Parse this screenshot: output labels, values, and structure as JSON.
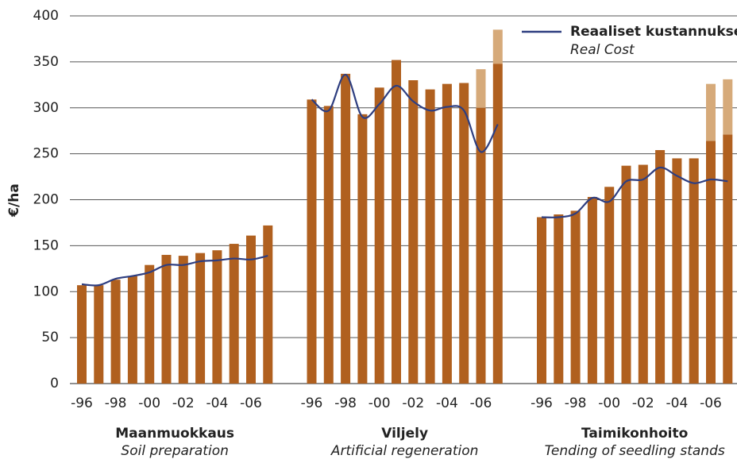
{
  "chart_data": {
    "type": "bar",
    "y_label": "€/ha",
    "ylim": [
      0,
      400
    ],
    "yticks": [
      0,
      50,
      100,
      150,
      200,
      250,
      300,
      350,
      400
    ],
    "grid": true,
    "bar_color": "#b0601f",
    "extra_color": "#d6aa7a",
    "legend": {
      "name": "Reaaliset kustannukset",
      "subtitle": "Real Cost",
      "color": "#2e3e80"
    },
    "groups": [
      {
        "title": "Maanmuokkaus",
        "subtitle": "Soil preparation",
        "categories": [
          "-96",
          null,
          "-98",
          null,
          "-00",
          null,
          "-02",
          null,
          "-04",
          null,
          "-06",
          null
        ],
        "values": [
          107,
          107,
          113,
          117,
          129,
          140,
          139,
          142,
          145,
          152,
          161,
          172
        ],
        "extra": [
          null,
          null,
          null,
          null,
          null,
          null,
          null,
          null,
          null,
          null,
          null,
          null
        ],
        "real_cost": [
          108,
          107,
          114,
          117,
          121,
          129,
          129,
          133,
          134,
          136,
          135,
          139
        ]
      },
      {
        "title": "Viljely",
        "subtitle": "Artificial regeneration",
        "categories": [
          "-96",
          null,
          "-98",
          null,
          "-00",
          null,
          "-02",
          null,
          "-04",
          null,
          "-06",
          null
        ],
        "values": [
          309,
          302,
          337,
          293,
          322,
          352,
          330,
          320,
          326,
          327,
          300,
          348
        ],
        "extra": [
          null,
          null,
          null,
          null,
          null,
          null,
          null,
          null,
          null,
          null,
          42,
          37
        ],
        "real_cost": [
          309,
          297,
          336,
          290,
          304,
          324,
          307,
          297,
          301,
          297,
          252,
          282
        ]
      },
      {
        "title": "Taimikonhoito",
        "subtitle": "Tending of seedling stands",
        "categories": [
          "-96",
          null,
          "-98",
          null,
          "-00",
          null,
          "-02",
          null,
          "-04",
          null,
          "-06",
          null
        ],
        "values": [
          181,
          184,
          188,
          203,
          214,
          237,
          238,
          254,
          245,
          245,
          264,
          271
        ],
        "extra": [
          null,
          null,
          null,
          null,
          null,
          null,
          null,
          null,
          null,
          null,
          62,
          60
        ],
        "real_cost": [
          181,
          181,
          185,
          202,
          198,
          220,
          222,
          235,
          226,
          218,
          222,
          220
        ]
      }
    ]
  }
}
